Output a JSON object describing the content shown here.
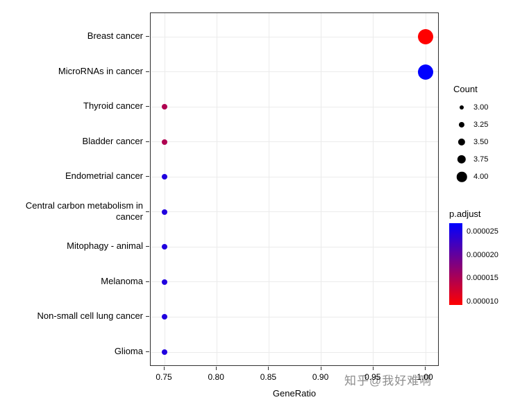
{
  "chart_data": {
    "type": "scatter",
    "title": "",
    "xlabel": "GeneRatio",
    "ylabel": "",
    "x_ticks": [
      0.75,
      0.8,
      0.85,
      0.9,
      0.95,
      1.0
    ],
    "xlim": [
      0.737,
      1.013
    ],
    "grid": true,
    "legend_position": "right",
    "categories": [
      "Breast cancer",
      "MicroRNAs in cancer",
      "Thyroid cancer",
      "Bladder cancer",
      "Endometrial cancer",
      "Central carbon metabolism in cancer",
      "Mitophagy - animal",
      "Melanoma",
      "Non-small cell lung cancer",
      "Glioma"
    ],
    "points": [
      {
        "pathway": "Breast cancer",
        "gene_ratio": 1.0,
        "count": 4,
        "p_adjust": 1e-05
      },
      {
        "pathway": "MicroRNAs in cancer",
        "gene_ratio": 1.0,
        "count": 4,
        "p_adjust": 2.6e-05
      },
      {
        "pathway": "Thyroid cancer",
        "gene_ratio": 0.75,
        "count": 3,
        "p_adjust": 1.5e-05
      },
      {
        "pathway": "Bladder cancer",
        "gene_ratio": 0.75,
        "count": 3,
        "p_adjust": 1.5e-05
      },
      {
        "pathway": "Endometrial cancer",
        "gene_ratio": 0.75,
        "count": 3,
        "p_adjust": 2.4e-05
      },
      {
        "pathway": "Central carbon metabolism in cancer",
        "gene_ratio": 0.75,
        "count": 3,
        "p_adjust": 2.4e-05
      },
      {
        "pathway": "Mitophagy - animal",
        "gene_ratio": 0.75,
        "count": 3,
        "p_adjust": 2.4e-05
      },
      {
        "pathway": "Melanoma",
        "gene_ratio": 0.75,
        "count": 3,
        "p_adjust": 2.4e-05
      },
      {
        "pathway": "Non-small cell lung cancer",
        "gene_ratio": 0.75,
        "count": 3,
        "p_adjust": 2.4e-05
      },
      {
        "pathway": "Glioma",
        "gene_ratio": 0.75,
        "count": 3,
        "p_adjust": 2.4e-05
      }
    ],
    "legend_count": {
      "title": "Count",
      "entries": [
        "3.00",
        "3.25",
        "3.50",
        "3.75",
        "4.00"
      ]
    },
    "legend_padjust": {
      "title": "p.adjust",
      "ticks": [
        "0.000025",
        "0.000020",
        "0.000015",
        "0.000010"
      ],
      "domain": [
        1e-05,
        2.6e-05
      ],
      "color_low": "#FF0000",
      "color_high": "#0000FF"
    }
  },
  "watermark": "知乎@我好难啊"
}
